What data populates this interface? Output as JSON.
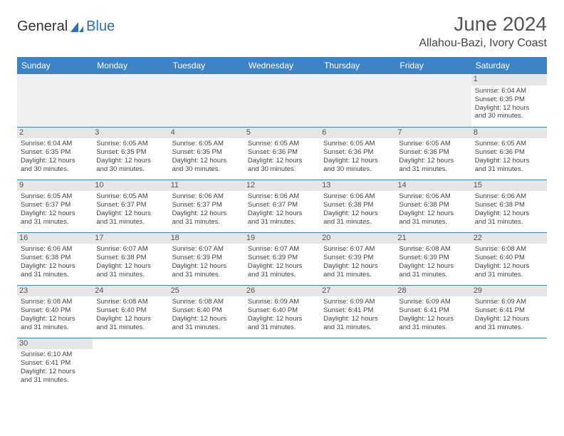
{
  "brand": {
    "general": "General",
    "blue": "Blue"
  },
  "title": "June 2024",
  "location": "Allahou-Bazi, Ivory Coast",
  "colors": {
    "header_bg": "#3d84c6",
    "header_text": "#ffffff",
    "daynum_bg": "#e6e6e6",
    "border": "#3d84c6",
    "logo_blue": "#2d6fb0"
  },
  "weekdays": [
    "Sunday",
    "Monday",
    "Tuesday",
    "Wednesday",
    "Thursday",
    "Friday",
    "Saturday"
  ],
  "weeks": [
    [
      null,
      null,
      null,
      null,
      null,
      null,
      {
        "n": "1",
        "sr": "Sunrise: 6:04 AM",
        "ss": "Sunset: 6:35 PM",
        "d1": "Daylight: 12 hours",
        "d2": "and 30 minutes."
      }
    ],
    [
      {
        "n": "2",
        "sr": "Sunrise: 6:04 AM",
        "ss": "Sunset: 6:35 PM",
        "d1": "Daylight: 12 hours",
        "d2": "and 30 minutes."
      },
      {
        "n": "3",
        "sr": "Sunrise: 6:05 AM",
        "ss": "Sunset: 6:35 PM",
        "d1": "Daylight: 12 hours",
        "d2": "and 30 minutes."
      },
      {
        "n": "4",
        "sr": "Sunrise: 6:05 AM",
        "ss": "Sunset: 6:35 PM",
        "d1": "Daylight: 12 hours",
        "d2": "and 30 minutes."
      },
      {
        "n": "5",
        "sr": "Sunrise: 6:05 AM",
        "ss": "Sunset: 6:36 PM",
        "d1": "Daylight: 12 hours",
        "d2": "and 30 minutes."
      },
      {
        "n": "6",
        "sr": "Sunrise: 6:05 AM",
        "ss": "Sunset: 6:36 PM",
        "d1": "Daylight: 12 hours",
        "d2": "and 30 minutes."
      },
      {
        "n": "7",
        "sr": "Sunrise: 6:05 AM",
        "ss": "Sunset: 6:36 PM",
        "d1": "Daylight: 12 hours",
        "d2": "and 31 minutes."
      },
      {
        "n": "8",
        "sr": "Sunrise: 6:05 AM",
        "ss": "Sunset: 6:36 PM",
        "d1": "Daylight: 12 hours",
        "d2": "and 31 minutes."
      }
    ],
    [
      {
        "n": "9",
        "sr": "Sunrise: 6:05 AM",
        "ss": "Sunset: 6:37 PM",
        "d1": "Daylight: 12 hours",
        "d2": "and 31 minutes."
      },
      {
        "n": "10",
        "sr": "Sunrise: 6:05 AM",
        "ss": "Sunset: 6:37 PM",
        "d1": "Daylight: 12 hours",
        "d2": "and 31 minutes."
      },
      {
        "n": "11",
        "sr": "Sunrise: 6:06 AM",
        "ss": "Sunset: 6:37 PM",
        "d1": "Daylight: 12 hours",
        "d2": "and 31 minutes."
      },
      {
        "n": "12",
        "sr": "Sunrise: 6:06 AM",
        "ss": "Sunset: 6:37 PM",
        "d1": "Daylight: 12 hours",
        "d2": "and 31 minutes."
      },
      {
        "n": "13",
        "sr": "Sunrise: 6:06 AM",
        "ss": "Sunset: 6:38 PM",
        "d1": "Daylight: 12 hours",
        "d2": "and 31 minutes."
      },
      {
        "n": "14",
        "sr": "Sunrise: 6:06 AM",
        "ss": "Sunset: 6:38 PM",
        "d1": "Daylight: 12 hours",
        "d2": "and 31 minutes."
      },
      {
        "n": "15",
        "sr": "Sunrise: 6:06 AM",
        "ss": "Sunset: 6:38 PM",
        "d1": "Daylight: 12 hours",
        "d2": "and 31 minutes."
      }
    ],
    [
      {
        "n": "16",
        "sr": "Sunrise: 6:06 AM",
        "ss": "Sunset: 6:38 PM",
        "d1": "Daylight: 12 hours",
        "d2": "and 31 minutes."
      },
      {
        "n": "17",
        "sr": "Sunrise: 6:07 AM",
        "ss": "Sunset: 6:38 PM",
        "d1": "Daylight: 12 hours",
        "d2": "and 31 minutes."
      },
      {
        "n": "18",
        "sr": "Sunrise: 6:07 AM",
        "ss": "Sunset: 6:39 PM",
        "d1": "Daylight: 12 hours",
        "d2": "and 31 minutes."
      },
      {
        "n": "19",
        "sr": "Sunrise: 6:07 AM",
        "ss": "Sunset: 6:39 PM",
        "d1": "Daylight: 12 hours",
        "d2": "and 31 minutes."
      },
      {
        "n": "20",
        "sr": "Sunrise: 6:07 AM",
        "ss": "Sunset: 6:39 PM",
        "d1": "Daylight: 12 hours",
        "d2": "and 31 minutes."
      },
      {
        "n": "21",
        "sr": "Sunrise: 6:08 AM",
        "ss": "Sunset: 6:39 PM",
        "d1": "Daylight: 12 hours",
        "d2": "and 31 minutes."
      },
      {
        "n": "22",
        "sr": "Sunrise: 6:08 AM",
        "ss": "Sunset: 6:40 PM",
        "d1": "Daylight: 12 hours",
        "d2": "and 31 minutes."
      }
    ],
    [
      {
        "n": "23",
        "sr": "Sunrise: 6:08 AM",
        "ss": "Sunset: 6:40 PM",
        "d1": "Daylight: 12 hours",
        "d2": "and 31 minutes."
      },
      {
        "n": "24",
        "sr": "Sunrise: 6:08 AM",
        "ss": "Sunset: 6:40 PM",
        "d1": "Daylight: 12 hours",
        "d2": "and 31 minutes."
      },
      {
        "n": "25",
        "sr": "Sunrise: 6:08 AM",
        "ss": "Sunset: 6:40 PM",
        "d1": "Daylight: 12 hours",
        "d2": "and 31 minutes."
      },
      {
        "n": "26",
        "sr": "Sunrise: 6:09 AM",
        "ss": "Sunset: 6:40 PM",
        "d1": "Daylight: 12 hours",
        "d2": "and 31 minutes."
      },
      {
        "n": "27",
        "sr": "Sunrise: 6:09 AM",
        "ss": "Sunset: 6:41 PM",
        "d1": "Daylight: 12 hours",
        "d2": "and 31 minutes."
      },
      {
        "n": "28",
        "sr": "Sunrise: 6:09 AM",
        "ss": "Sunset: 6:41 PM",
        "d1": "Daylight: 12 hours",
        "d2": "and 31 minutes."
      },
      {
        "n": "29",
        "sr": "Sunrise: 6:09 AM",
        "ss": "Sunset: 6:41 PM",
        "d1": "Daylight: 12 hours",
        "d2": "and 31 minutes."
      }
    ],
    [
      {
        "n": "30",
        "sr": "Sunrise: 6:10 AM",
        "ss": "Sunset: 6:41 PM",
        "d1": "Daylight: 12 hours",
        "d2": "and 31 minutes."
      },
      null,
      null,
      null,
      null,
      null,
      null
    ]
  ]
}
